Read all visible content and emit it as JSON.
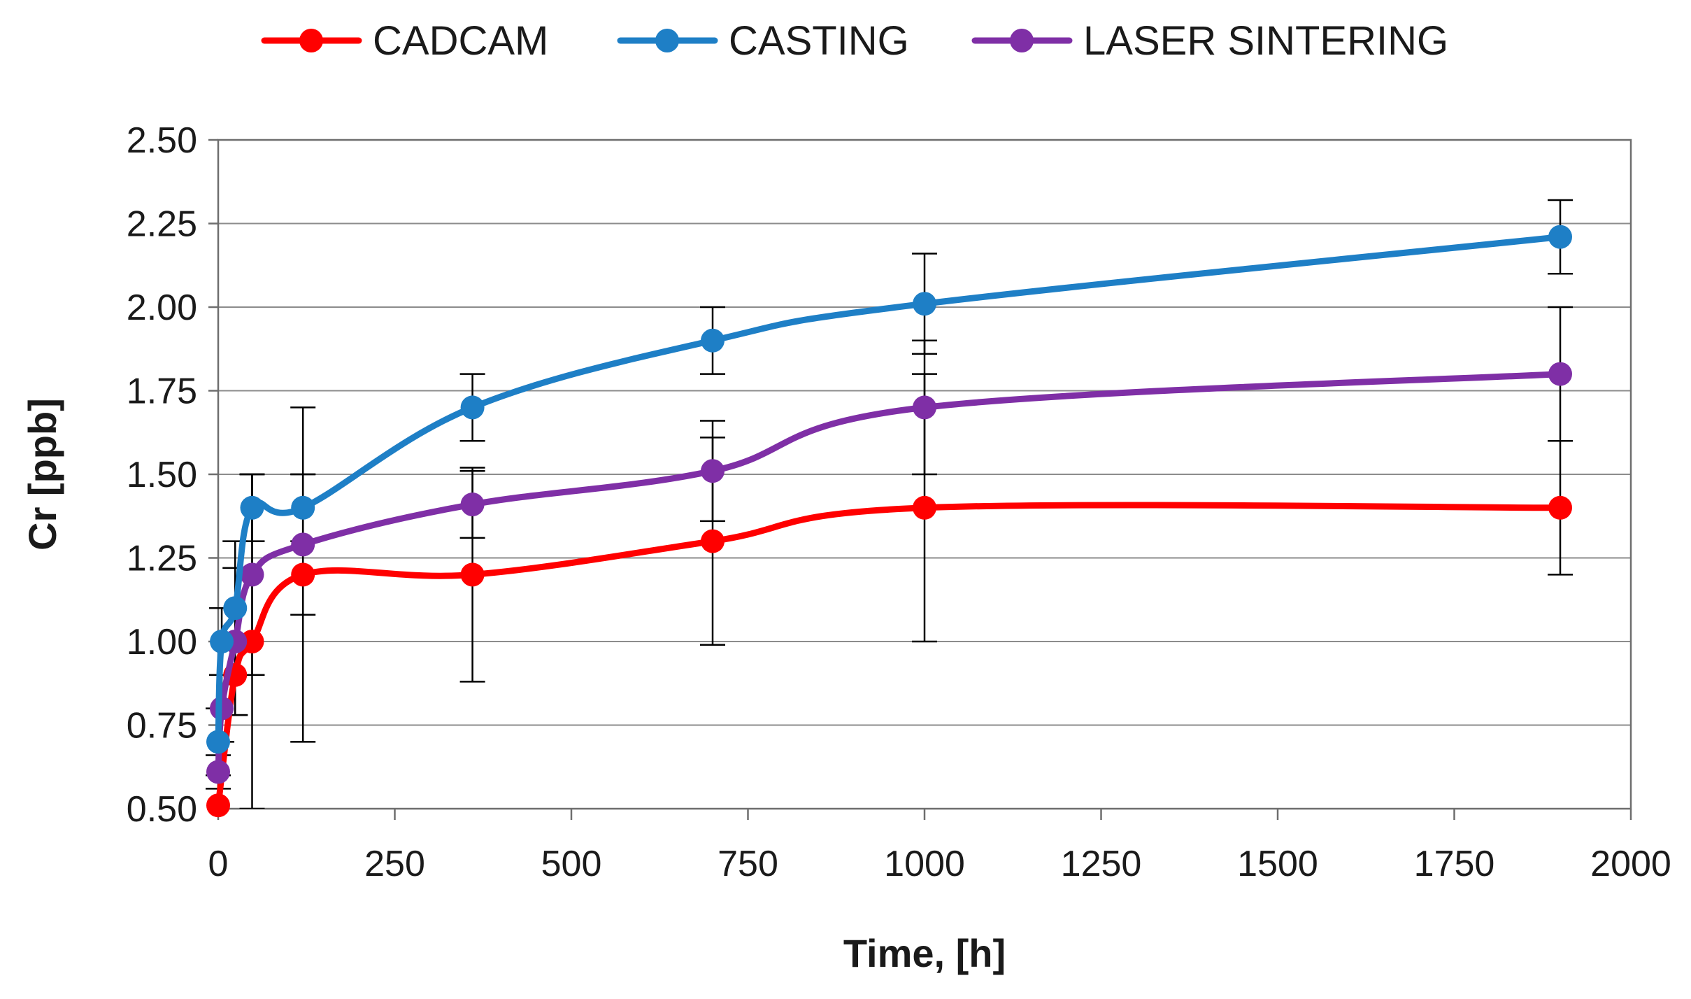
{
  "chart_data": {
    "type": "line",
    "title": "",
    "xlabel": "Time, [h]",
    "ylabel": "Cr [ppb]",
    "xlim": [
      0,
      2000
    ],
    "ylim": [
      0.5,
      2.5
    ],
    "x_ticks": [
      0,
      250,
      500,
      750,
      1000,
      1250,
      1500,
      1750,
      2000
    ],
    "x_tick_labels": [
      "0",
      "250",
      "500",
      "750",
      "1000",
      "1250",
      "1500",
      "1750",
      "2000"
    ],
    "y_ticks": [
      0.5,
      0.75,
      1.0,
      1.25,
      1.5,
      1.75,
      2.0,
      2.25,
      2.5
    ],
    "y_tick_labels": [
      "0.50",
      "0.75",
      "1.00",
      "1.25",
      "1.50",
      "1.75",
      "2.00",
      "2.25",
      "2.50"
    ],
    "grid": "horizontal",
    "legend_position": "top",
    "series": [
      {
        "name": "CADCAM",
        "color": "#ff0000",
        "x": [
          0,
          24,
          48,
          120,
          360,
          700,
          1000,
          1900
        ],
        "y": [
          0.51,
          0.9,
          1.0,
          1.2,
          1.2,
          1.3,
          1.4,
          1.4
        ],
        "err": [
          0.0,
          0.12,
          0.5,
          0.5,
          0.32,
          0.31,
          0.4,
          0.2
        ]
      },
      {
        "name": "CASTING",
        "color": "#1e7fc6",
        "x": [
          0,
          5,
          24,
          48,
          120,
          360,
          700,
          1000,
          1900
        ],
        "y": [
          0.7,
          1.0,
          1.1,
          1.4,
          1.4,
          1.7,
          1.9,
          2.01,
          2.21
        ],
        "err": [
          0.1,
          0.1,
          0.2,
          0.1,
          0.1,
          0.1,
          0.1,
          0.15,
          0.11
        ]
      },
      {
        "name": "LASER SINTERING",
        "color": "#7f2fa6",
        "x": [
          0,
          5,
          24,
          48,
          120,
          360,
          700,
          1000,
          1900
        ],
        "y": [
          0.61,
          0.8,
          1.0,
          1.2,
          1.29,
          1.41,
          1.51,
          1.7,
          1.8
        ],
        "err": [
          0.05,
          0.1,
          0.22,
          0.3,
          0.21,
          0.1,
          0.15,
          0.2,
          0.2
        ]
      }
    ]
  }
}
